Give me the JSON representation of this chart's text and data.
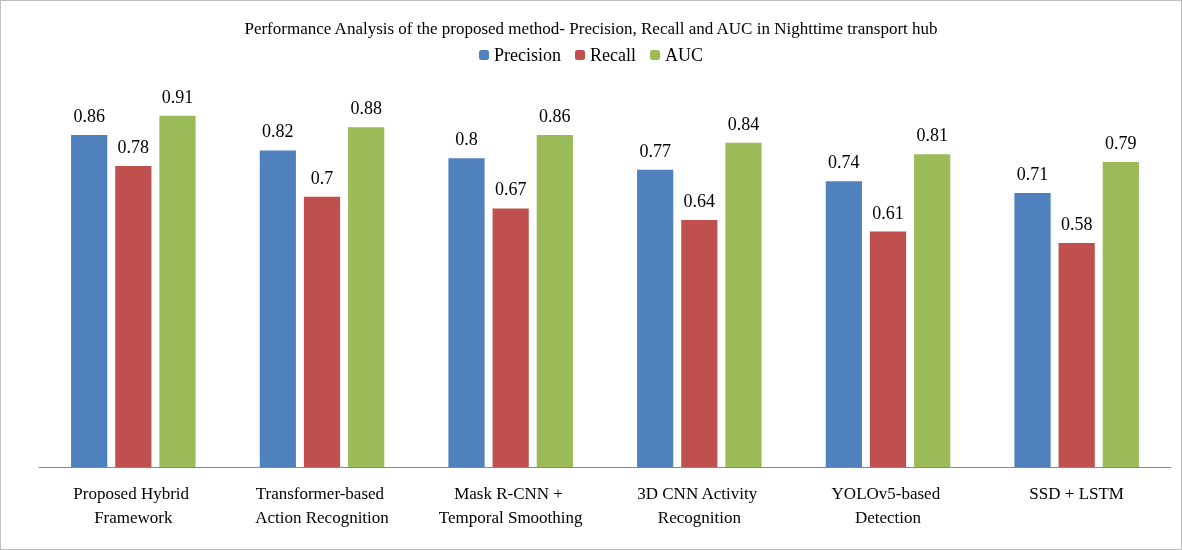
{
  "chart_data": {
    "type": "bar",
    "title": "Performance Analysis of the proposed method- Precision, Recall and AUC in Nighttime transport hub",
    "categories": [
      "Proposed Hybrid Framework",
      "Transformer-based Action Recognition",
      "Mask R-CNN + Temporal Smoothing",
      "3D CNN Activity Recognition",
      "YOLOv5-based Detection",
      "SSD + LSTM"
    ],
    "series": [
      {
        "name": "Precision",
        "color": "#4f81bd",
        "values": [
          0.86,
          0.82,
          0.8,
          0.77,
          0.74,
          0.71
        ]
      },
      {
        "name": "Recall",
        "color": "#c0504d",
        "values": [
          0.78,
          0.7,
          0.67,
          0.64,
          0.61,
          0.58
        ]
      },
      {
        "name": "AUC",
        "color": "#9bbb59",
        "values": [
          0.91,
          0.88,
          0.86,
          0.84,
          0.81,
          0.79
        ]
      }
    ],
    "tick_labels": "x",
    "data_labels": true,
    "legend": "top"
  }
}
